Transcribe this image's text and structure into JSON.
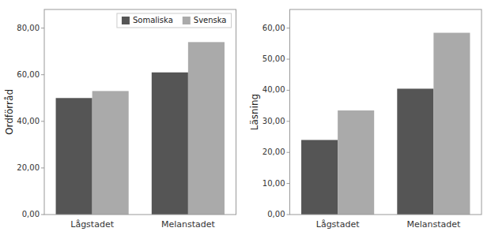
{
  "chart_data": [
    {
      "type": "bar",
      "y_label": "Ordförråd",
      "categories": [
        "Lågstadet",
        "Melanstadet"
      ],
      "series": [
        {
          "name": "Somaliska",
          "color": "#555555",
          "values": [
            50.0,
            61.0
          ]
        },
        {
          "name": "Svenska",
          "color": "#aaaaaa",
          "values": [
            53.0,
            74.0
          ]
        }
      ],
      "ylim": [
        0,
        88
      ],
      "yticks": [
        {
          "value": 0.0,
          "label": "0,00"
        },
        {
          "value": 20.0,
          "label": "20,00"
        },
        {
          "value": 40.0,
          "label": "40,00"
        },
        {
          "value": 60.0,
          "label": "60,00"
        },
        {
          "value": 80.0,
          "label": "80,00"
        }
      ],
      "grid": false,
      "legend": "upper right"
    },
    {
      "type": "bar",
      "y_label": "Läsning",
      "categories": [
        "Lågstadet",
        "Melanstadet"
      ],
      "series": [
        {
          "color": "#555555",
          "values": [
            24.0,
            40.5
          ]
        },
        {
          "color": "#aaaaaa",
          "values": [
            33.5,
            58.5
          ]
        }
      ],
      "ylim": [
        0,
        66
      ],
      "yticks": [
        {
          "value": 0.0,
          "label": "0,00"
        },
        {
          "value": 10.0,
          "label": "10,00"
        },
        {
          "value": 20.0,
          "label": "20,00"
        },
        {
          "value": 30.0,
          "label": "30,00"
        },
        {
          "value": 40.0,
          "label": "40,00"
        },
        {
          "value": 50.0,
          "label": "50,00"
        },
        {
          "value": 60.0,
          "label": "60,00"
        }
      ],
      "grid": false
    }
  ]
}
